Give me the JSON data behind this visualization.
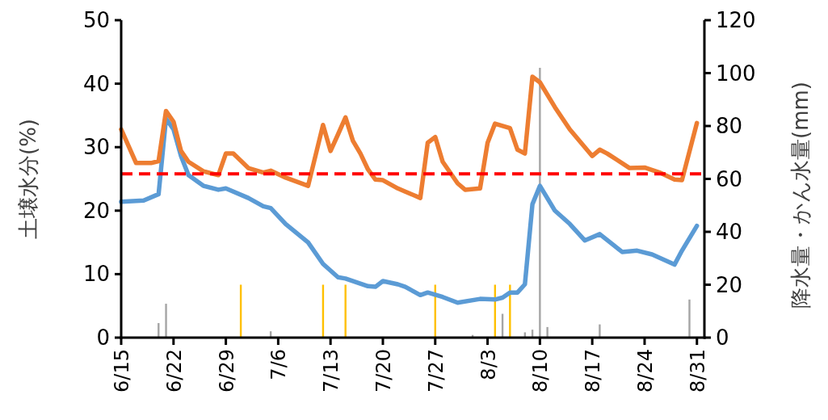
{
  "chart_data": {
    "type": "line",
    "ylabel": "土壌水分(%)",
    "y2label": "降水量・かん水量(mm)",
    "xlim": [
      "--06-15",
      "--09-01"
    ],
    "xticks": [
      {
        "value": "--06-15",
        "label": "6/15"
      },
      {
        "value": "--06-22",
        "label": "6/22"
      },
      {
        "value": "--06-29",
        "label": "6/29"
      },
      {
        "value": "--07-06",
        "label": "7/6"
      },
      {
        "value": "--07-13",
        "label": "7/13"
      },
      {
        "value": "--07-20",
        "label": "7/20"
      },
      {
        "value": "--07-27",
        "label": "7/27"
      },
      {
        "value": "--08-03",
        "label": "8/3"
      },
      {
        "value": "--08-10",
        "label": "8/10"
      },
      {
        "value": "--08-17",
        "label": "8/17"
      },
      {
        "value": "--08-24",
        "label": "8/24"
      },
      {
        "value": "--08-31",
        "label": "8/31"
      }
    ],
    "ylim": [
      0,
      50
    ],
    "yticks": [
      0,
      10,
      20,
      30,
      40,
      50
    ],
    "y2lim": [
      0,
      120
    ],
    "y2ticks": [
      0,
      20,
      40,
      60,
      80,
      100,
      120
    ],
    "series": [
      {
        "type": "bar",
        "axis": "y2",
        "color": "#a5a5a5",
        "x": [
          "--06-20",
          "--06-21",
          "--07-05",
          "--08-01",
          "--08-05",
          "--08-08",
          "--08-09",
          "--08-10",
          "--08-11",
          "--08-18",
          "--08-30"
        ],
        "values": [
          5.5,
          12.8,
          2.4,
          1,
          9,
          2,
          3,
          102,
          4,
          5,
          14.4
        ]
      },
      {
        "type": "bar",
        "axis": "y2",
        "color": "#ffc000",
        "x": [
          "--07-01",
          "--07-12",
          "--07-15",
          "--07-27",
          "--08-04",
          "--08-06"
        ],
        "values": [
          20,
          20,
          20,
          20,
          20,
          20
        ]
      },
      {
        "color": "#5b9bd5",
        "x": [
          "--06-15",
          "--06-18",
          "--06-20",
          "--06-21",
          "--06-22",
          "--06-23",
          "--06-24",
          "--06-26",
          "--06-28",
          "--06-29",
          "--07-02",
          "--07-04",
          "--07-05",
          "--07-07",
          "--07-10",
          "--07-12",
          "--07-14",
          "--07-15",
          "--07-18",
          "--07-19",
          "--07-20",
          "--07-22",
          "--07-23",
          "--07-25",
          "--07-26",
          "--07-28",
          "--07-30",
          "--08-02",
          "--08-04",
          "--08-05",
          "--08-06",
          "--08-07",
          "--08-08",
          "--08-09",
          "--08-10",
          "--08-12",
          "--08-14",
          "--08-16",
          "--08-18",
          "--08-21",
          "--08-23",
          "--08-25",
          "--08-28",
          "--08-29",
          "--08-31"
        ],
        "values": [
          21.4,
          21.6,
          22.6,
          34.5,
          32.8,
          28.6,
          25.6,
          23.9,
          23.3,
          23.5,
          22,
          20.7,
          20.4,
          17.9,
          15,
          11.6,
          9.5,
          9.3,
          8.1,
          8,
          8.9,
          8.4,
          8,
          6.7,
          7.1,
          6.4,
          5.5,
          6.1,
          6,
          6.3,
          7.1,
          7.1,
          8.4,
          21,
          23.9,
          20,
          17.9,
          15.3,
          16.3,
          13.5,
          13.7,
          13.1,
          11.5,
          13.7,
          17.6
        ]
      },
      {
        "color": "#ed7d31",
        "x": [
          "--06-15",
          "--06-17",
          "--06-19",
          "--06-20",
          "--06-21",
          "--06-22",
          "--06-23",
          "--06-24",
          "--06-26",
          "--06-28",
          "--06-29",
          "--06-30",
          "--07-02",
          "--07-04",
          "--07-05",
          "--07-07",
          "--07-10",
          "--07-12",
          "--07-13",
          "--07-14",
          "--07-15",
          "--07-16",
          "--07-17",
          "--07-18",
          "--07-19",
          "--07-20",
          "--07-22",
          "--07-23",
          "--07-25",
          "--07-26",
          "--07-27",
          "--07-28",
          "--07-30",
          "--07-31",
          "--08-02",
          "--08-03",
          "--08-04",
          "--08-06",
          "--08-07",
          "--08-08",
          "--08-09",
          "--08-10",
          "--08-12",
          "--08-14",
          "--08-17",
          "--08-18",
          "--08-19",
          "--08-22",
          "--08-24",
          "--08-26",
          "--08-28",
          "--08-29",
          "--08-31"
        ],
        "values": [
          32.8,
          27.5,
          27.5,
          27.8,
          35.7,
          34,
          29.4,
          27.7,
          26.2,
          25.6,
          29,
          29,
          26.7,
          26,
          26.3,
          25.2,
          23.9,
          33.5,
          29.4,
          32,
          34.7,
          31,
          29,
          26.5,
          24.9,
          24.8,
          23.5,
          23,
          22,
          30.7,
          31.6,
          27.7,
          24.3,
          23.3,
          23.5,
          30.7,
          33.7,
          33,
          29.6,
          29,
          41.1,
          40.2,
          36.3,
          32.8,
          28.6,
          29.6,
          29,
          26.7,
          26.8,
          26,
          24.9,
          24.8,
          33.8
        ]
      }
    ],
    "ref_lines": [
      {
        "axis": "y",
        "value": 25.8,
        "color": "#ff0000",
        "line_style": "dashed"
      }
    ]
  }
}
